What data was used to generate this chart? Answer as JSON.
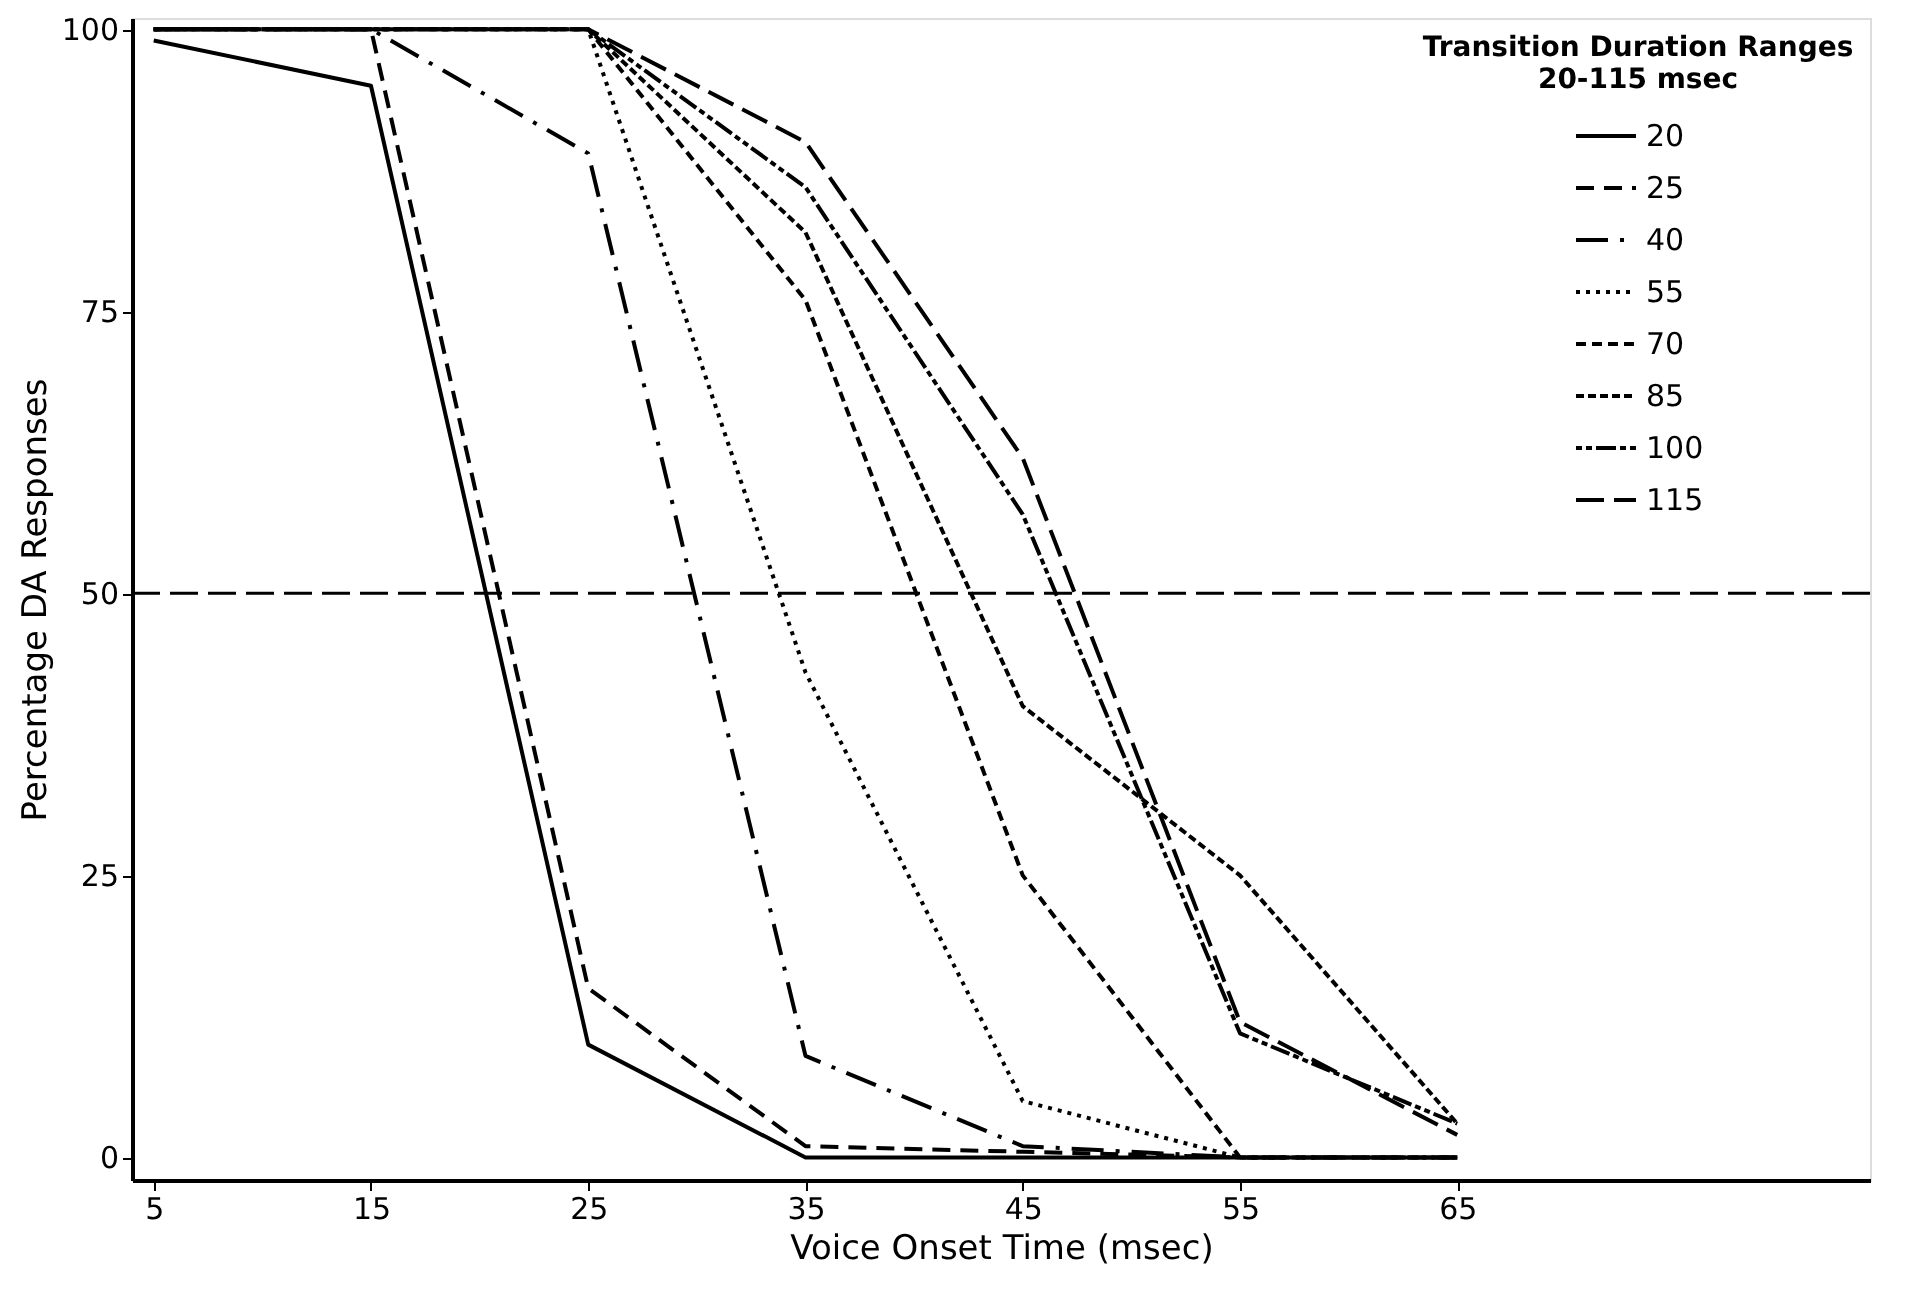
{
  "chart_data": {
    "type": "line",
    "xlabel": "Voice Onset Time (msec)",
    "ylabel": "Percentage  DA  Responses",
    "legend_title": "Transition Duration Ranges\n20-115 msec",
    "x": [
      5,
      15,
      25,
      35,
      45,
      55,
      65
    ],
    "series": [
      {
        "name": "20",
        "color": "#000000",
        "line_style": "solid",
        "values": [
          99,
          95,
          10,
          0,
          0,
          0,
          0
        ]
      },
      {
        "name": "25",
        "color": "#000000",
        "line_style": "dashed",
        "values": [
          100,
          100,
          15,
          1,
          0.5,
          0,
          0
        ]
      },
      {
        "name": "40",
        "color": "#000000",
        "line_style": "dashed",
        "values": [
          100,
          100,
          89,
          9,
          1,
          0,
          0
        ]
      },
      {
        "name": "55",
        "color": "#000000",
        "line_style": "dotted",
        "values": [
          100,
          100,
          100,
          43,
          5,
          0,
          0
        ]
      },
      {
        "name": "70",
        "color": "#000000",
        "line_style": "dashed",
        "values": [
          100,
          100,
          100,
          76,
          25,
          0,
          0
        ]
      },
      {
        "name": "85",
        "color": "#000000",
        "line_style": "dashed",
        "values": [
          100,
          100,
          100,
          82,
          40,
          25,
          3
        ]
      },
      {
        "name": "100",
        "color": "#000000",
        "line_style": "dashed",
        "values": [
          100,
          100,
          100,
          86,
          57,
          11,
          3
        ]
      },
      {
        "name": "115",
        "color": "#000000",
        "line_style": "dashed",
        "values": [
          100,
          100,
          100,
          90,
          62,
          12,
          2
        ]
      }
    ],
    "xlim": [
      4,
      84
    ],
    "xticks": [
      5,
      15,
      25,
      35,
      45,
      55,
      65
    ],
    "ylim": [
      -2,
      101
    ],
    "yticks": [
      0,
      25,
      50,
      75,
      100
    ],
    "ref_lines": [
      {
        "axis": "y",
        "value": 50,
        "line_style": "dashed",
        "color": "#000000"
      }
    ],
    "grid": false,
    "legend": "top right",
    "marker": "none"
  }
}
